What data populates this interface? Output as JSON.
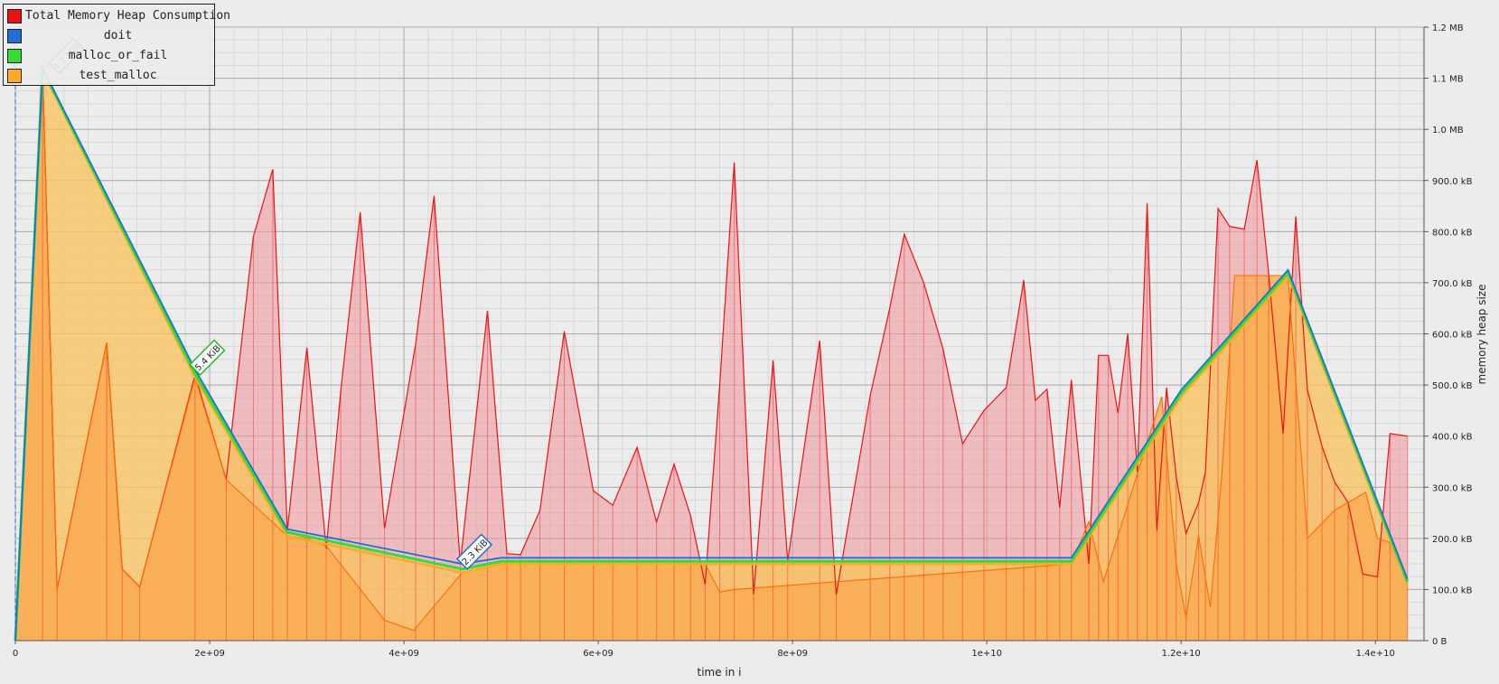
{
  "chart_data": {
    "type": "area",
    "xlabel": "time in i",
    "ylabel": "memory heap size",
    "xlim": [
      0,
      14500000000
    ],
    "ylim": [
      0,
      1200
    ],
    "x_ticks": [
      {
        "value": 0,
        "label": "0"
      },
      {
        "value": 2000000000,
        "label": "2e+09"
      },
      {
        "value": 4000000000,
        "label": "4e+09"
      },
      {
        "value": 6000000000,
        "label": "6e+09"
      },
      {
        "value": 8000000000,
        "label": "8e+09"
      },
      {
        "value": 10000000000,
        "label": "1e+10"
      },
      {
        "value": 12000000000,
        "label": "1.2e+10"
      },
      {
        "value": 14000000000,
        "label": "1.4e+10"
      }
    ],
    "y_ticks": [
      {
        "value": 0,
        "label": "0 B"
      },
      {
        "value": 100,
        "label": "100.0 kB"
      },
      {
        "value": 200,
        "label": "200.0 kB"
      },
      {
        "value": 300,
        "label": "300.0 kB"
      },
      {
        "value": 400,
        "label": "400.0 kB"
      },
      {
        "value": 500,
        "label": "500.0 kB"
      },
      {
        "value": 600,
        "label": "600.0 kB"
      },
      {
        "value": 700,
        "label": "700.0 kB"
      },
      {
        "value": 800,
        "label": "800.0 kB"
      },
      {
        "value": 900,
        "label": "900.0 kB"
      },
      {
        "value": 1000,
        "label": "1.0 MB"
      },
      {
        "value": 1100,
        "label": "1.1 MB"
      },
      {
        "value": 1200,
        "label": "1.2 MB"
      }
    ],
    "grid": true,
    "legend_position": "top-left",
    "series": [
      {
        "name": "Total Memory Heap Consumption",
        "color": "#ee1111",
        "fill": "rgba(240,150,155,0.55)",
        "x": [
          0,
          280000000,
          430000000,
          940000000,
          1100000000,
          1280000000,
          1850000000,
          2170000000,
          2450000000,
          2650000000,
          2800000000,
          3000000000,
          3200000000,
          3350000000,
          3550000000,
          3800000000,
          4120000000,
          4310000000,
          4580000000,
          4860000000,
          5060000000,
          5200000000,
          5400000000,
          5650000000,
          5950000000,
          6150000000,
          6400000000,
          6600000000,
          6780000000,
          6950000000,
          7100000000,
          7250000000,
          7400000000,
          7600000000,
          7800000000,
          7950000000,
          8280000000,
          8450000000,
          8800000000,
          9000000000,
          9150000000,
          9350000000,
          9550000000,
          9750000000,
          9970000000,
          10200000000,
          10380000000,
          10500000000,
          10620000000,
          10750000000,
          10870000000,
          11050000000,
          11150000000,
          11250000000,
          11350000000,
          11450000000,
          11550000000,
          11650000000,
          11750000000,
          11850000000,
          11950000000,
          12050000000,
          12180000000,
          12250000000,
          12380000000,
          12500000000,
          12650000000,
          12780000000,
          12900000000,
          13050000000,
          13180000000,
          13300000000,
          13450000000,
          13580000000,
          13720000000,
          13870000000,
          14020000000,
          14150000000,
          14330000000
        ],
        "y": [
          0,
          1120,
          100,
          583,
          140,
          105,
          520,
          315,
          790,
          922,
          215,
          573,
          180,
          490,
          838,
          220,
          580,
          870,
          150,
          645,
          170,
          168,
          255,
          605,
          293,
          265,
          378,
          232,
          345,
          245,
          110,
          500,
          935,
          90,
          548,
          155,
          587,
          90,
          480,
          650,
          795,
          700,
          570,
          385,
          450,
          495,
          705,
          470,
          492,
          260,
          510,
          150,
          558,
          558,
          445,
          600,
          330,
          855,
          215,
          495,
          320,
          210,
          270,
          330,
          845,
          810,
          805,
          940,
          720,
          405,
          830,
          490,
          380,
          310,
          270,
          130,
          125,
          405,
          400
        ]
      },
      {
        "name": "doit",
        "color": "#1f6fd8",
        "x": [
          0,
          280000000,
          1850000000,
          2800000000,
          4600000000,
          5000000000,
          10870000000,
          12000000000,
          13100000000,
          14330000000
        ],
        "y": [
          0,
          1120,
          530,
          218,
          150,
          162,
          162,
          490,
          725,
          120
        ]
      },
      {
        "name": "malloc_or_fail",
        "color": "#33dd33",
        "x": [
          0,
          280000000,
          1850000000,
          2800000000,
          4600000000,
          5000000000,
          10870000000,
          12000000000,
          13100000000,
          14330000000
        ],
        "y": [
          0,
          1118,
          522,
          212,
          140,
          155,
          155,
          484,
          720,
          115
        ]
      },
      {
        "name": "test_malloc",
        "color": "#ffaa22",
        "fill": "rgba(250,195,95,0.78)",
        "x": [
          0,
          280000000,
          1850000000,
          2800000000,
          4600000000,
          5000000000,
          10870000000,
          12000000000,
          13100000000,
          14330000000
        ],
        "y": [
          0,
          1115,
          515,
          205,
          133,
          150,
          150,
          477,
          714,
          110
        ]
      }
    ],
    "test_malloc_fill_line": {
      "color": "#ff6a00",
      "x": [
        0,
        280000000,
        430000000,
        940000000,
        1100000000,
        1280000000,
        1850000000,
        2170000000,
        2800000000,
        3000000000,
        3200000000,
        3800000000,
        4100000000,
        4600000000,
        5000000000,
        7100000000,
        7250000000,
        7400000000,
        10870000000,
        11050000000,
        11200000000,
        11800000000,
        11950000000,
        12050000000,
        12180000000,
        12300000000,
        12420000000,
        12550000000,
        13100000000,
        13300000000,
        13580000000,
        13900000000,
        14020000000,
        14180000000,
        14330000000
      ],
      "y": [
        0,
        1115,
        100,
        583,
        140,
        105,
        515,
        315,
        205,
        200,
        185,
        40,
        20,
        133,
        150,
        150,
        95,
        100,
        150,
        233,
        115,
        477,
        150,
        45,
        205,
        65,
        330,
        714,
        714,
        200,
        255,
        290,
        200,
        190,
        110
      ]
    },
    "annotations": [
      {
        "text": "1.1 MiB",
        "x": 400000000,
        "y": 1120,
        "color": "#ee1111"
      },
      {
        "text": "5.4 KiB",
        "x": 1850000000,
        "y": 530,
        "color": "#22bb22"
      },
      {
        "text": "2.3 KiB",
        "x": 4600000000,
        "y": 150,
        "color": "#1f6fd8"
      }
    ]
  }
}
